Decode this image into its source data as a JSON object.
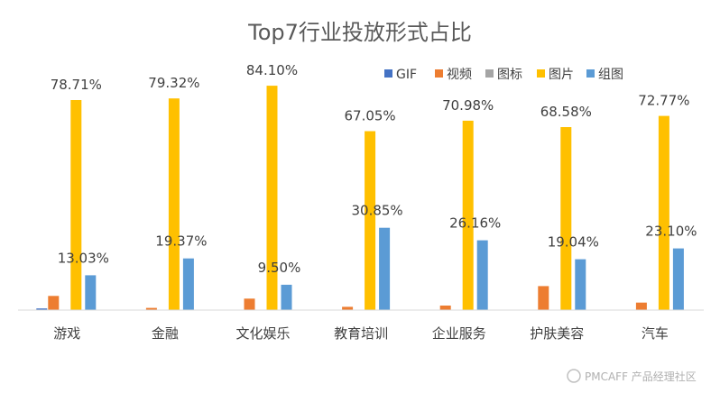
{
  "chart_data": {
    "type": "bar",
    "title": "Top7行业投放形式占比",
    "categories": [
      "游戏",
      "金融",
      "文化娱乐",
      "教育培训",
      "企业服务",
      "护肤美容",
      "汽车"
    ],
    "series": [
      {
        "name": "GIF",
        "color": "#4472C4",
        "values": [
          0.6,
          0,
          0,
          0,
          0,
          0,
          0
        ]
      },
      {
        "name": "视频",
        "color": "#ED7D31",
        "values": [
          5.3,
          0.8,
          4.3,
          1.2,
          1.7,
          9.0,
          2.8
        ]
      },
      {
        "name": "图标",
        "color": "#A5A5A5",
        "values": [
          0,
          0,
          0,
          0,
          0,
          0,
          0
        ]
      },
      {
        "name": "图片",
        "color": "#FFC000",
        "values": [
          78.71,
          79.32,
          84.1,
          67.05,
          70.98,
          68.58,
          72.77
        ]
      },
      {
        "name": "组图",
        "color": "#5B9BD5",
        "values": [
          13.03,
          19.37,
          9.5,
          30.85,
          26.16,
          19.04,
          23.1
        ]
      }
    ],
    "data_labels": {
      "图片": [
        "78.71%",
        "79.32%",
        "84.10%",
        "67.05%",
        "70.98%",
        "68.58%",
        "72.77%"
      ],
      "组图": [
        "13.03%",
        "19.37%",
        "9.50%",
        "30.85%",
        "26.16%",
        "19.04%",
        "23.10%"
      ]
    },
    "ylim": [
      0,
      100
    ],
    "grid": false,
    "legend": "top-right"
  },
  "watermark": "PMCAFF 产品经理社区"
}
